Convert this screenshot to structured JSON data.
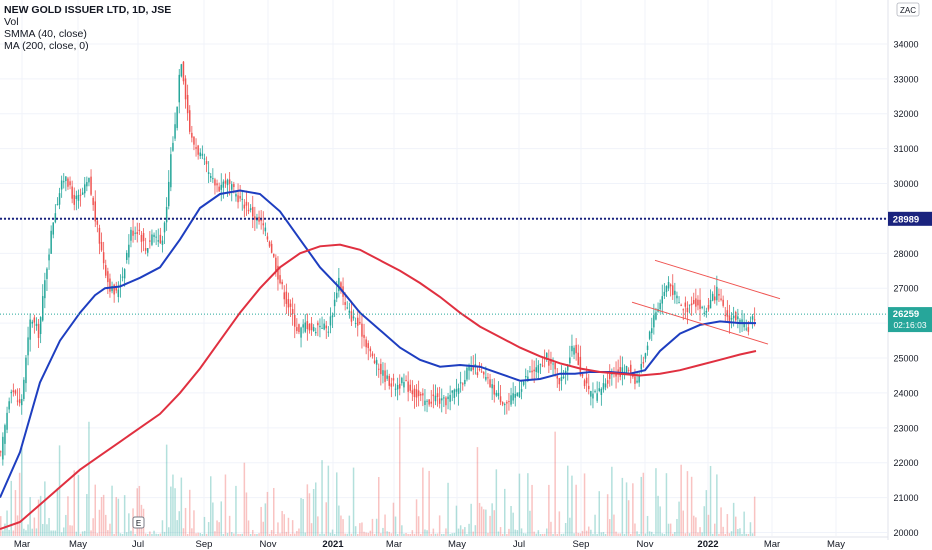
{
  "legend": {
    "title": "NEW GOLD ISSUER LTD, 1D, JSE",
    "vol": "Vol",
    "smma": "SMMA (40, close)",
    "ma": "MA (200, close, 0)"
  },
  "currency_badge": "ZAC",
  "countdown": "02:16:03",
  "colors": {
    "up": "#26a69a",
    "down": "#ef5350",
    "smma": "#1e3ec0",
    "ma": "#e03040",
    "hline": "#1a237e",
    "current": "#26a69a"
  },
  "chart_data": {
    "type": "candlestick",
    "y_axis": {
      "ticks": [
        20000,
        21000,
        22000,
        23000,
        24000,
        25000,
        26000,
        27000,
        28000,
        29000,
        30000,
        31000,
        32000,
        33000,
        34000
      ],
      "range": [
        19900,
        34600
      ]
    },
    "x_axis": {
      "ticks": [
        "Mar",
        "May",
        "Jul",
        "Sep",
        "Nov",
        "2021",
        "Mar",
        "May",
        "Jul",
        "Sep",
        "Nov",
        "2022",
        "Mar",
        "May"
      ]
    },
    "horizontal_line": {
      "value": 28989,
      "label": "28989"
    },
    "current_price": {
      "value": 26259,
      "label": "26259"
    },
    "price_path": [
      [
        0,
        22200
      ],
      [
        10,
        24200
      ],
      [
        20,
        23600
      ],
      [
        30,
        26200
      ],
      [
        38,
        25700
      ],
      [
        45,
        27400
      ],
      [
        52,
        28900
      ],
      [
        58,
        29700
      ],
      [
        65,
        30300
      ],
      [
        72,
        29500
      ],
      [
        80,
        29600
      ],
      [
        88,
        30100
      ],
      [
        95,
        28900
      ],
      [
        102,
        27900
      ],
      [
        108,
        27100
      ],
      [
        115,
        26800
      ],
      [
        122,
        27400
      ],
      [
        130,
        28600
      ],
      [
        138,
        28700
      ],
      [
        145,
        28100
      ],
      [
        152,
        28600
      ],
      [
        160,
        28300
      ],
      [
        165,
        28900
      ],
      [
        170,
        30800
      ],
      [
        175,
        31800
      ],
      [
        180,
        33700
      ],
      [
        185,
        32500
      ],
      [
        190,
        31300
      ],
      [
        196,
        31000
      ],
      [
        202,
        30700
      ],
      [
        210,
        30100
      ],
      [
        218,
        29900
      ],
      [
        225,
        30100
      ],
      [
        232,
        29800
      ],
      [
        240,
        29500
      ],
      [
        248,
        29300
      ],
      [
        255,
        29000
      ],
      [
        262,
        28800
      ],
      [
        270,
        28200
      ],
      [
        278,
        27300
      ],
      [
        285,
        26700
      ],
      [
        292,
        26200
      ],
      [
        298,
        25700
      ],
      [
        305,
        26000
      ],
      [
        312,
        25800
      ],
      [
        320,
        26000
      ],
      [
        327,
        25800
      ],
      [
        333,
        26500
      ],
      [
        338,
        27300
      ],
      [
        344,
        26500
      ],
      [
        350,
        26200
      ],
      [
        356,
        26000
      ],
      [
        362,
        25700
      ],
      [
        370,
        25100
      ],
      [
        378,
        24700
      ],
      [
        386,
        24400
      ],
      [
        394,
        24200
      ],
      [
        402,
        24300
      ],
      [
        410,
        24100
      ],
      [
        418,
        23900
      ],
      [
        426,
        23700
      ],
      [
        434,
        23900
      ],
      [
        442,
        23700
      ],
      [
        450,
        23900
      ],
      [
        458,
        24200
      ],
      [
        466,
        24600
      ],
      [
        474,
        24700
      ],
      [
        482,
        24500
      ],
      [
        490,
        24200
      ],
      [
        498,
        23900
      ],
      [
        506,
        23700
      ],
      [
        514,
        23900
      ],
      [
        522,
        24300
      ],
      [
        530,
        24600
      ],
      [
        538,
        24700
      ],
      [
        546,
        25000
      ],
      [
        553,
        24700
      ],
      [
        560,
        24300
      ],
      [
        567,
        24900
      ],
      [
        574,
        25400
      ],
      [
        580,
        24600
      ],
      [
        588,
        24000
      ],
      [
        596,
        23900
      ],
      [
        604,
        24300
      ],
      [
        612,
        24600
      ],
      [
        620,
        24600
      ],
      [
        628,
        24700
      ],
      [
        636,
        24300
      ],
      [
        644,
        25100
      ],
      [
        650,
        25900
      ],
      [
        656,
        26400
      ],
      [
        662,
        26800
      ],
      [
        668,
        27200
      ],
      [
        674,
        26800
      ],
      [
        680,
        26500
      ],
      [
        686,
        26400
      ],
      [
        692,
        26700
      ],
      [
        698,
        26500
      ],
      [
        704,
        26300
      ],
      [
        710,
        26600
      ],
      [
        716,
        26900
      ],
      [
        722,
        26400
      ],
      [
        728,
        26100
      ],
      [
        734,
        26200
      ],
      [
        740,
        26000
      ],
      [
        746,
        25800
      ],
      [
        752,
        26100
      ],
      [
        756,
        26300
      ]
    ],
    "series": [
      {
        "name": "SMMA (40, close)",
        "color": "#1e3ec0",
        "points": [
          [
            0,
            21000
          ],
          [
            20,
            22300
          ],
          [
            40,
            24300
          ],
          [
            60,
            25500
          ],
          [
            80,
            26300
          ],
          [
            95,
            26800
          ],
          [
            105,
            27000
          ],
          [
            120,
            27050
          ],
          [
            140,
            27300
          ],
          [
            160,
            27600
          ],
          [
            180,
            28400
          ],
          [
            200,
            29300
          ],
          [
            220,
            29700
          ],
          [
            240,
            29800
          ],
          [
            260,
            29700
          ],
          [
            280,
            29200
          ],
          [
            300,
            28400
          ],
          [
            320,
            27600
          ],
          [
            340,
            27000
          ],
          [
            360,
            26300
          ],
          [
            380,
            25800
          ],
          [
            400,
            25300
          ],
          [
            420,
            24950
          ],
          [
            440,
            24750
          ],
          [
            460,
            24800
          ],
          [
            480,
            24750
          ],
          [
            500,
            24550
          ],
          [
            520,
            24350
          ],
          [
            540,
            24400
          ],
          [
            560,
            24550
          ],
          [
            575,
            24550
          ],
          [
            590,
            24600
          ],
          [
            610,
            24600
          ],
          [
            630,
            24550
          ],
          [
            645,
            24650
          ],
          [
            660,
            25200
          ],
          [
            680,
            25700
          ],
          [
            700,
            25950
          ],
          [
            720,
            26050
          ],
          [
            740,
            26000
          ],
          [
            756,
            26000
          ]
        ]
      },
      {
        "name": "MA (200, close, 0)",
        "color": "#e03040",
        "points": [
          [
            0,
            20100
          ],
          [
            20,
            20300
          ],
          [
            40,
            20800
          ],
          [
            60,
            21300
          ],
          [
            80,
            21800
          ],
          [
            100,
            22200
          ],
          [
            120,
            22600
          ],
          [
            140,
            23000
          ],
          [
            160,
            23400
          ],
          [
            180,
            24000
          ],
          [
            200,
            24700
          ],
          [
            220,
            25500
          ],
          [
            240,
            26300
          ],
          [
            260,
            27000
          ],
          [
            280,
            27600
          ],
          [
            300,
            28000
          ],
          [
            320,
            28200
          ],
          [
            340,
            28250
          ],
          [
            360,
            28100
          ],
          [
            380,
            27800
          ],
          [
            400,
            27500
          ],
          [
            420,
            27150
          ],
          [
            440,
            26750
          ],
          [
            460,
            26300
          ],
          [
            480,
            25900
          ],
          [
            500,
            25600
          ],
          [
            520,
            25300
          ],
          [
            540,
            25050
          ],
          [
            560,
            24850
          ],
          [
            580,
            24700
          ],
          [
            600,
            24600
          ],
          [
            620,
            24550
          ],
          [
            640,
            24500
          ],
          [
            660,
            24550
          ],
          [
            680,
            24650
          ],
          [
            700,
            24800
          ],
          [
            720,
            24950
          ],
          [
            740,
            25100
          ],
          [
            756,
            25200
          ]
        ]
      }
    ],
    "channel": [
      {
        "from": [
          655,
          27800
        ],
        "to": [
          780,
          26700
        ]
      },
      {
        "from": [
          632,
          26600
        ],
        "to": [
          768,
          25400
        ]
      }
    ],
    "volume": {
      "range": [
        0,
        6000000
      ]
    }
  }
}
